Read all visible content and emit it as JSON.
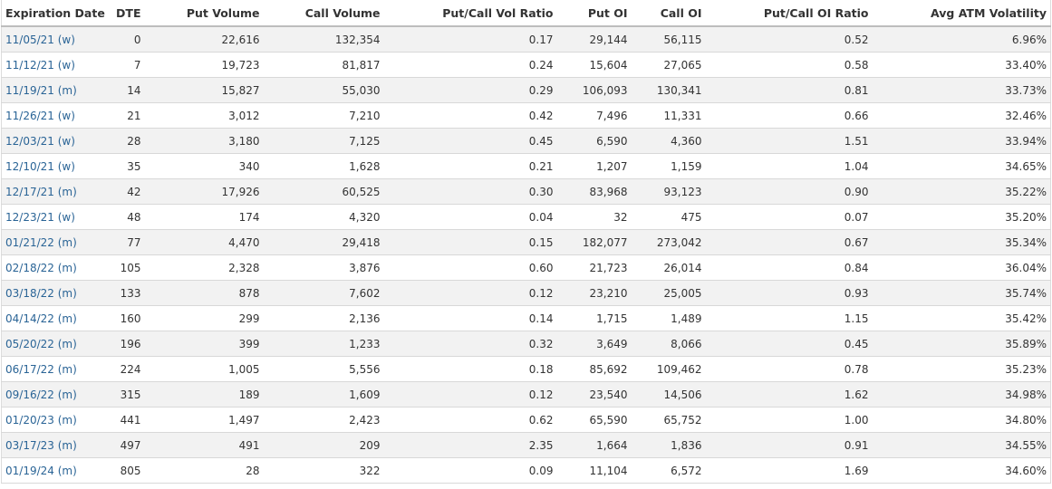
{
  "table": {
    "columns": [
      {
        "key": "expiration",
        "label": "Expiration Date"
      },
      {
        "key": "dte",
        "label": "DTE"
      },
      {
        "key": "put_volume",
        "label": "Put Volume"
      },
      {
        "key": "call_volume",
        "label": "Call Volume"
      },
      {
        "key": "pc_vol_ratio",
        "label": "Put/Call Vol Ratio"
      },
      {
        "key": "put_oi",
        "label": "Put OI"
      },
      {
        "key": "call_oi",
        "label": "Call OI"
      },
      {
        "key": "pc_oi_ratio",
        "label": "Put/Call OI Ratio"
      },
      {
        "key": "avg_atm_vol",
        "label": "Avg ATM Volatility"
      }
    ],
    "rows": [
      {
        "expiration": "11/05/21 (w)",
        "dte": "0",
        "put_volume": "22,616",
        "call_volume": "132,354",
        "pc_vol_ratio": "0.17",
        "put_oi": "29,144",
        "call_oi": "56,115",
        "pc_oi_ratio": "0.52",
        "avg_atm_vol": "6.96%"
      },
      {
        "expiration": "11/12/21 (w)",
        "dte": "7",
        "put_volume": "19,723",
        "call_volume": "81,817",
        "pc_vol_ratio": "0.24",
        "put_oi": "15,604",
        "call_oi": "27,065",
        "pc_oi_ratio": "0.58",
        "avg_atm_vol": "33.40%"
      },
      {
        "expiration": "11/19/21 (m)",
        "dte": "14",
        "put_volume": "15,827",
        "call_volume": "55,030",
        "pc_vol_ratio": "0.29",
        "put_oi": "106,093",
        "call_oi": "130,341",
        "pc_oi_ratio": "0.81",
        "avg_atm_vol": "33.73%"
      },
      {
        "expiration": "11/26/21 (w)",
        "dte": "21",
        "put_volume": "3,012",
        "call_volume": "7,210",
        "pc_vol_ratio": "0.42",
        "put_oi": "7,496",
        "call_oi": "11,331",
        "pc_oi_ratio": "0.66",
        "avg_atm_vol": "32.46%"
      },
      {
        "expiration": "12/03/21 (w)",
        "dte": "28",
        "put_volume": "3,180",
        "call_volume": "7,125",
        "pc_vol_ratio": "0.45",
        "put_oi": "6,590",
        "call_oi": "4,360",
        "pc_oi_ratio": "1.51",
        "avg_atm_vol": "33.94%"
      },
      {
        "expiration": "12/10/21 (w)",
        "dte": "35",
        "put_volume": "340",
        "call_volume": "1,628",
        "pc_vol_ratio": "0.21",
        "put_oi": "1,207",
        "call_oi": "1,159",
        "pc_oi_ratio": "1.04",
        "avg_atm_vol": "34.65%"
      },
      {
        "expiration": "12/17/21 (m)",
        "dte": "42",
        "put_volume": "17,926",
        "call_volume": "60,525",
        "pc_vol_ratio": "0.30",
        "put_oi": "83,968",
        "call_oi": "93,123",
        "pc_oi_ratio": "0.90",
        "avg_atm_vol": "35.22%"
      },
      {
        "expiration": "12/23/21 (w)",
        "dte": "48",
        "put_volume": "174",
        "call_volume": "4,320",
        "pc_vol_ratio": "0.04",
        "put_oi": "32",
        "call_oi": "475",
        "pc_oi_ratio": "0.07",
        "avg_atm_vol": "35.20%"
      },
      {
        "expiration": "01/21/22 (m)",
        "dte": "77",
        "put_volume": "4,470",
        "call_volume": "29,418",
        "pc_vol_ratio": "0.15",
        "put_oi": "182,077",
        "call_oi": "273,042",
        "pc_oi_ratio": "0.67",
        "avg_atm_vol": "35.34%"
      },
      {
        "expiration": "02/18/22 (m)",
        "dte": "105",
        "put_volume": "2,328",
        "call_volume": "3,876",
        "pc_vol_ratio": "0.60",
        "put_oi": "21,723",
        "call_oi": "26,014",
        "pc_oi_ratio": "0.84",
        "avg_atm_vol": "36.04%"
      },
      {
        "expiration": "03/18/22 (m)",
        "dte": "133",
        "put_volume": "878",
        "call_volume": "7,602",
        "pc_vol_ratio": "0.12",
        "put_oi": "23,210",
        "call_oi": "25,005",
        "pc_oi_ratio": "0.93",
        "avg_atm_vol": "35.74%"
      },
      {
        "expiration": "04/14/22 (m)",
        "dte": "160",
        "put_volume": "299",
        "call_volume": "2,136",
        "pc_vol_ratio": "0.14",
        "put_oi": "1,715",
        "call_oi": "1,489",
        "pc_oi_ratio": "1.15",
        "avg_atm_vol": "35.42%"
      },
      {
        "expiration": "05/20/22 (m)",
        "dte": "196",
        "put_volume": "399",
        "call_volume": "1,233",
        "pc_vol_ratio": "0.32",
        "put_oi": "3,649",
        "call_oi": "8,066",
        "pc_oi_ratio": "0.45",
        "avg_atm_vol": "35.89%"
      },
      {
        "expiration": "06/17/22 (m)",
        "dte": "224",
        "put_volume": "1,005",
        "call_volume": "5,556",
        "pc_vol_ratio": "0.18",
        "put_oi": "85,692",
        "call_oi": "109,462",
        "pc_oi_ratio": "0.78",
        "avg_atm_vol": "35.23%"
      },
      {
        "expiration": "09/16/22 (m)",
        "dte": "315",
        "put_volume": "189",
        "call_volume": "1,609",
        "pc_vol_ratio": "0.12",
        "put_oi": "23,540",
        "call_oi": "14,506",
        "pc_oi_ratio": "1.62",
        "avg_atm_vol": "34.98%"
      },
      {
        "expiration": "01/20/23 (m)",
        "dte": "441",
        "put_volume": "1,497",
        "call_volume": "2,423",
        "pc_vol_ratio": "0.62",
        "put_oi": "65,590",
        "call_oi": "65,752",
        "pc_oi_ratio": "1.00",
        "avg_atm_vol": "34.80%"
      },
      {
        "expiration": "03/17/23 (m)",
        "dte": "497",
        "put_volume": "491",
        "call_volume": "209",
        "pc_vol_ratio": "2.35",
        "put_oi": "1,664",
        "call_oi": "1,836",
        "pc_oi_ratio": "0.91",
        "avg_atm_vol": "34.55%"
      },
      {
        "expiration": "01/19/24 (m)",
        "dte": "805",
        "put_volume": "28",
        "call_volume": "322",
        "pc_vol_ratio": "0.09",
        "put_oi": "11,104",
        "call_oi": "6,572",
        "pc_oi_ratio": "1.69",
        "avg_atm_vol": "34.60%"
      }
    ]
  },
  "colors": {
    "link": "#2a6496",
    "stripe": "#f2f2f2",
    "text": "#333333"
  }
}
